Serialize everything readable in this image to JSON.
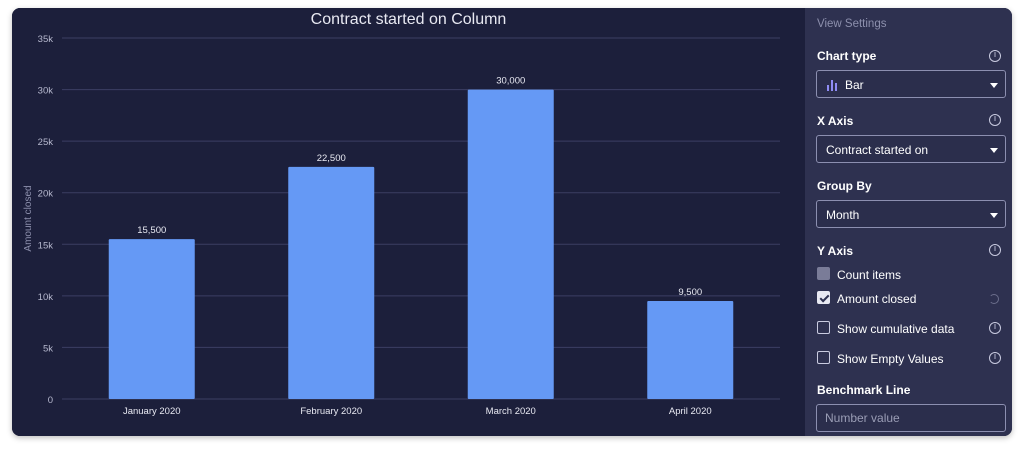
{
  "chart_data": {
    "type": "bar",
    "title": "Contract started on Column",
    "xlabel": "",
    "ylabel": "Amount closed",
    "categories": [
      "January 2020",
      "February 2020",
      "March 2020",
      "April 2020"
    ],
    "values": [
      15500,
      22500,
      30000,
      9500
    ],
    "data_labels": [
      "15,500",
      "22,500",
      "30,000",
      "9,500"
    ],
    "ylim": [
      0,
      35000
    ],
    "y_ticks": [
      0,
      5000,
      10000,
      15000,
      20000,
      25000,
      30000,
      35000
    ],
    "y_tick_labels": [
      "0",
      "5k",
      "10k",
      "15k",
      "20k",
      "25k",
      "30k",
      "35k"
    ],
    "grid": true,
    "bar_color": "#6599f5"
  },
  "panel": {
    "header": "View Settings",
    "chart_type": {
      "label": "Chart type",
      "value": "Bar",
      "icon": "bar-chart-icon"
    },
    "x_axis": {
      "label": "X Axis",
      "value": "Contract started on"
    },
    "group_by": {
      "label": "Group By",
      "value": "Month"
    },
    "y_axis": {
      "label": "Y Axis",
      "count_items": "Count items",
      "amount_closed": "Amount closed"
    },
    "show_cumulative": "Show cumulative data",
    "show_empty": "Show Empty Values",
    "benchmark": {
      "label": "Benchmark Line",
      "placeholder": "Number value"
    }
  },
  "colors": {
    "chart_bg": "#1c1f3b",
    "panel_bg": "#2e3150",
    "bar": "#6599f5",
    "accent_icon": "#8f8cf5"
  }
}
